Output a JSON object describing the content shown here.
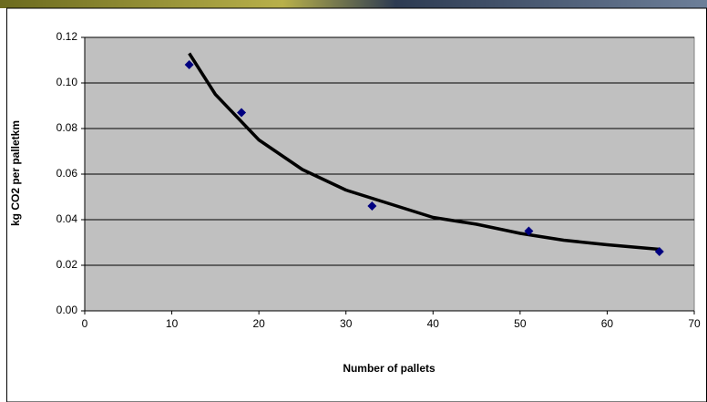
{
  "chart_data": {
    "type": "scatter",
    "xlabel": "Number of pallets",
    "ylabel": "kg CO2 per palletkm",
    "x": [
      12,
      18,
      33,
      51,
      66
    ],
    "values": [
      0.108,
      0.087,
      0.046,
      0.035,
      0.026
    ],
    "color": "#000080",
    "trendline": {
      "x": [
        12,
        15,
        20,
        25,
        30,
        35,
        40,
        45,
        50,
        55,
        60,
        66
      ],
      "values": [
        0.113,
        0.095,
        0.075,
        0.062,
        0.053,
        0.047,
        0.041,
        0.038,
        0.034,
        0.031,
        0.029,
        0.027
      ],
      "color": "#000000"
    },
    "xlim": [
      0,
      70
    ],
    "xticks": [
      0,
      10,
      20,
      30,
      40,
      50,
      60,
      70
    ],
    "ylim": [
      0,
      0.12
    ],
    "yticks": [
      {
        "value": 0,
        "label": "0.00"
      },
      {
        "value": 0.02,
        "label": "0.02"
      },
      {
        "value": 0.04,
        "label": "0.04"
      },
      {
        "value": 0.06,
        "label": "0.06"
      },
      {
        "value": 0.08,
        "label": "0.08"
      },
      {
        "value": 0.1,
        "label": "0.10"
      },
      {
        "value": 0.12,
        "label": "0.12"
      }
    ],
    "grid": true,
    "plot_background": "#c0c0c0"
  }
}
